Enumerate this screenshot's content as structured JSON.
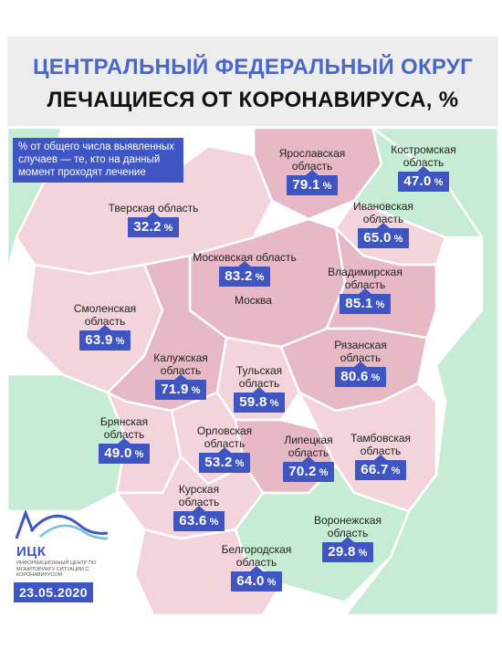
{
  "title_line1": "ЦЕНТРАЛЬНЫЙ ФЕДЕРАЛЬНЫЙ ОКРУГ",
  "title_line2": "ЛЕЧАЩИЕСЯ ОТ КОРОНАВИРУСА, %",
  "note": "% от общего числа выявленных случаев — те, кто на данный момент проходят лечение",
  "capital": "Москва",
  "regions": {
    "yaroslavl": {
      "name": "Ярославская область",
      "value": "79.1",
      "unit": "%"
    },
    "kostroma": {
      "name": "Костромская область",
      "value": "47.0",
      "unit": "%"
    },
    "tver": {
      "name": "Тверская область",
      "value": "32.2",
      "unit": "%"
    },
    "ivanovo": {
      "name": "Ивановская область",
      "value": "65.0",
      "unit": "%"
    },
    "moscow_obl": {
      "name": "Московская область",
      "value": "83.2",
      "unit": "%"
    },
    "vladimir": {
      "name": "Владимирская область",
      "value": "85.1",
      "unit": "%"
    },
    "smolensk": {
      "name": "Смоленская область",
      "value": "63.9",
      "unit": "%"
    },
    "ryazan": {
      "name": "Рязанская область",
      "value": "80.6",
      "unit": "%"
    },
    "kaluga": {
      "name": "Калужская область",
      "value": "71.9",
      "unit": "%"
    },
    "tula": {
      "name": "Тульская область",
      "value": "59.8",
      "unit": "%"
    },
    "bryansk": {
      "name": "Брянская область",
      "value": "49.0",
      "unit": "%"
    },
    "orel": {
      "name": "Орловская область",
      "value": "53.2",
      "unit": "%"
    },
    "lipetsk": {
      "name": "Липецкая область",
      "value": "70.2",
      "unit": "%"
    },
    "tambov": {
      "name": "Тамбовская область",
      "value": "66.7",
      "unit": "%"
    },
    "kursk": {
      "name": "Курская область",
      "value": "63.6",
      "unit": "%"
    },
    "voronezh": {
      "name": "Воронежская область",
      "value": "29.8",
      "unit": "%"
    },
    "belgorod": {
      "name": "Белгородская область",
      "value": "64.0",
      "unit": "%"
    }
  },
  "logo": {
    "name": "ИЦК",
    "subtitle": "Информационный центр по мониторингу ситуации с коронавирусом"
  },
  "date": "23.05.2020",
  "colors": {
    "accent": "#3f56c2",
    "region_pink": "#e7b8c6",
    "region_light_pink": "#f3d3dc",
    "region_green": "#c6ecd5",
    "header_bg": "#ededed"
  }
}
